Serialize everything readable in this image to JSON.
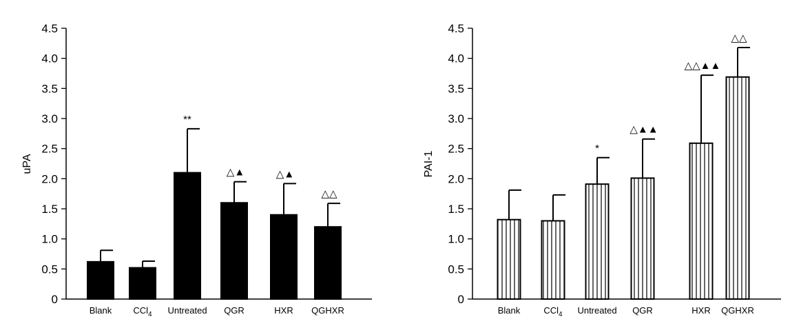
{
  "chart_data": [
    {
      "type": "bar",
      "ylabel": "uPA",
      "ylim": [
        0,
        4.5
      ],
      "yticks": [
        "0",
        "0.5",
        "1.0",
        "1.5",
        "2.0",
        "2.5",
        "3.0",
        "3.5",
        "4.0",
        "4.5"
      ],
      "categories": [
        "Blank",
        "CCl",
        "Untreated",
        "QGR",
        "HXR",
        "QGHXR"
      ],
      "category_subscripts": [
        "",
        "4",
        "",
        "",
        "",
        ""
      ],
      "values": [
        0.62,
        0.52,
        2.1,
        1.6,
        1.4,
        1.2
      ],
      "errors": [
        0.19,
        0.11,
        0.73,
        0.35,
        0.52,
        0.39
      ],
      "annotations": [
        "",
        "",
        "**",
        "△▲",
        "△▲",
        "△△"
      ],
      "fill": "solid",
      "color": "#000000"
    },
    {
      "type": "bar",
      "ylabel": "PAI-1",
      "ylim": [
        0,
        4.5
      ],
      "yticks": [
        "0",
        "0.5",
        "1.0",
        "1.5",
        "2.0",
        "2.5",
        "3.0",
        "3.5",
        "4.0",
        "4.5"
      ],
      "categories": [
        "Blank",
        "CCl",
        "Untreated",
        "QGR",
        "HXR",
        "QGHXR"
      ],
      "category_subscripts": [
        "",
        "4",
        "",
        "",
        "",
        ""
      ],
      "values": [
        1.32,
        1.3,
        1.91,
        2.01,
        2.59,
        3.69
      ],
      "errors": [
        0.49,
        0.43,
        0.44,
        0.65,
        1.13,
        0.49
      ],
      "annotations": [
        "",
        "",
        "*",
        "△▲▲",
        "△△▲▲",
        "△△"
      ],
      "fill": "vertical-stripes",
      "color": "#000000"
    }
  ]
}
